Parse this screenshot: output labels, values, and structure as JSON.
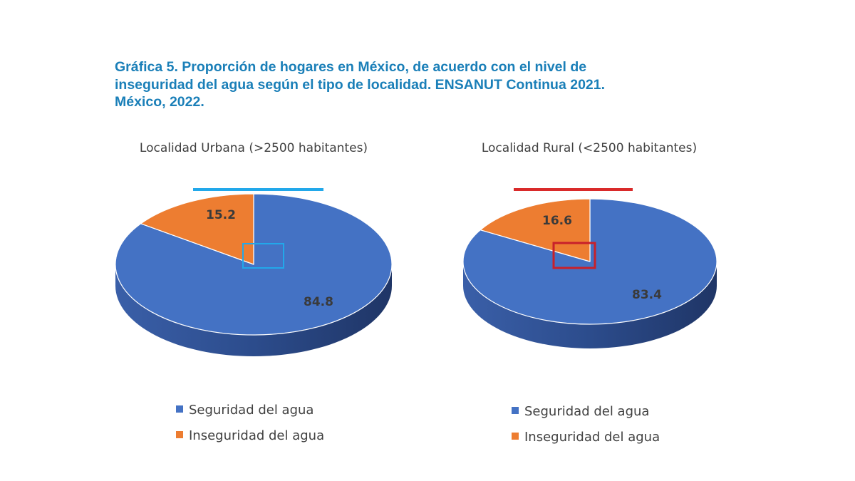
{
  "figure_title": {
    "line1": "Gráfica 5. Proporción de hogares en México, de acuerdo con el nivel de",
    "line2": "inseguridad del agua según el tipo de localidad. ENSANUT Continua 2021.",
    "line3": "México, 2022."
  },
  "colors": {
    "series_blue": "#4472c4",
    "series_blue_side": "#2e4a8a",
    "series_orange": "#ed7d31",
    "series_orange_side": "#b35c1e",
    "accent_urban": "#22a8ea",
    "accent_rural": "#d92a2a"
  },
  "chart_data": [
    {
      "type": "pie",
      "style": "3d",
      "title": "Localidad Urbana (>2500 habitantes)",
      "categories": [
        "Seguridad del agua",
        "Inseguridad del agua"
      ],
      "values": [
        84.8,
        15.2
      ],
      "data_labels": [
        "84.8",
        "15.2"
      ],
      "legend_position": "bottom"
    },
    {
      "type": "pie",
      "style": "3d",
      "title": "Localidad Rural (<2500 habitantes)",
      "categories": [
        "Seguridad del agua",
        "Inseguridad del agua"
      ],
      "values": [
        83.4,
        16.6
      ],
      "data_labels": [
        "83.4",
        "16.6"
      ],
      "legend_position": "bottom"
    }
  ]
}
